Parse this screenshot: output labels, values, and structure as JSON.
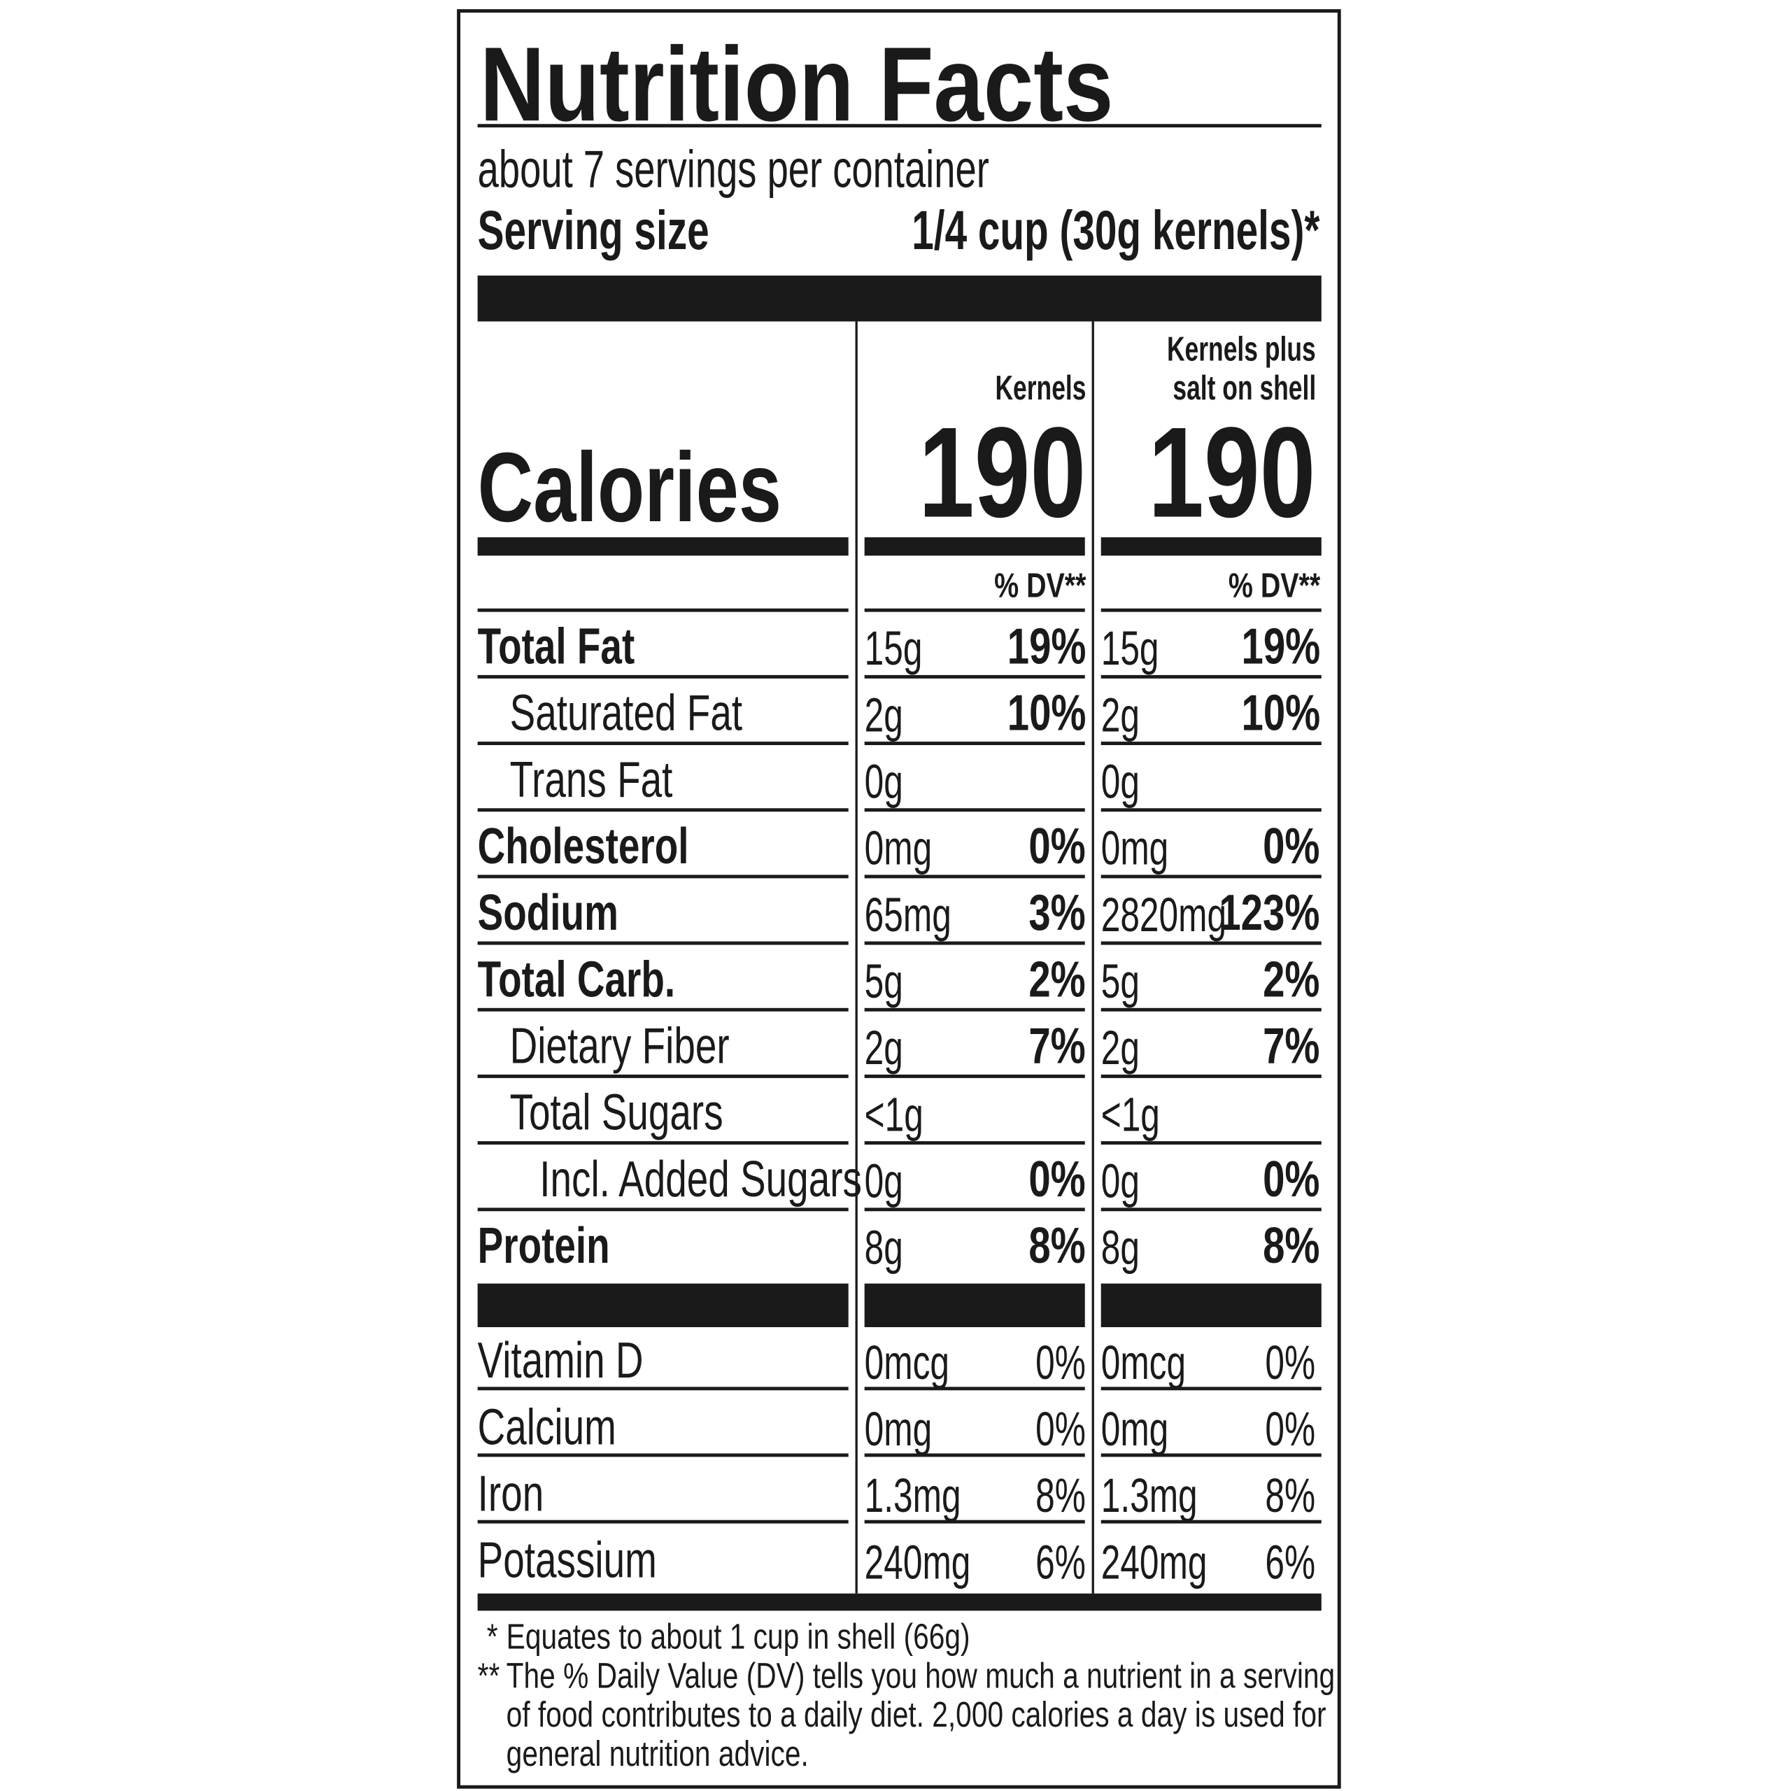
{
  "title": "Nutrition Facts",
  "servings_per_container": "about 7 servings per container",
  "serving_size_label": "Serving size",
  "serving_size_value": "1/4 cup (30g kernels)*",
  "calories_label": "Calories",
  "columns": [
    {
      "header_line1": "",
      "header_line2": "Kernels",
      "calories": "190",
      "dv_header": "% DV**"
    },
    {
      "header_line1": "Kernels plus",
      "header_line2": "salt on shell",
      "calories": "190",
      "dv_header": "% DV**"
    }
  ],
  "nutrients": [
    {
      "label": "Total Fat",
      "bold": true,
      "indent": 0,
      "values": [
        [
          "15g",
          "19%"
        ],
        [
          "15g",
          "19%"
        ]
      ]
    },
    {
      "label": "Saturated Fat",
      "bold": false,
      "indent": 1,
      "values": [
        [
          "2g",
          "10%"
        ],
        [
          "2g",
          "10%"
        ]
      ]
    },
    {
      "label": "Trans Fat",
      "bold": false,
      "indent": 1,
      "values": [
        [
          "0g",
          ""
        ],
        [
          "0g",
          ""
        ]
      ]
    },
    {
      "label": "Cholesterol",
      "bold": true,
      "indent": 0,
      "values": [
        [
          "0mg",
          "0%"
        ],
        [
          "0mg",
          "0%"
        ]
      ]
    },
    {
      "label": "Sodium",
      "bold": true,
      "indent": 0,
      "values": [
        [
          "65mg",
          "3%"
        ],
        [
          "2820mg",
          "123%"
        ]
      ]
    },
    {
      "label": "Total Carb.",
      "bold": true,
      "indent": 0,
      "values": [
        [
          "5g",
          "2%"
        ],
        [
          "5g",
          "2%"
        ]
      ]
    },
    {
      "label": "Dietary Fiber",
      "bold": false,
      "indent": 1,
      "values": [
        [
          "2g",
          "7%"
        ],
        [
          "2g",
          "7%"
        ]
      ]
    },
    {
      "label": "Total Sugars",
      "bold": false,
      "indent": 1,
      "values": [
        [
          "<1g",
          ""
        ],
        [
          "<1g",
          ""
        ]
      ]
    },
    {
      "label": "Incl. Added Sugars",
      "bold": false,
      "indent": 2,
      "values": [
        [
          "0g",
          "0%"
        ],
        [
          "0g",
          "0%"
        ]
      ]
    },
    {
      "label": "Protein",
      "bold": true,
      "indent": 0,
      "values": [
        [
          "8g",
          "8%"
        ],
        [
          "8g",
          "8%"
        ]
      ]
    }
  ],
  "vitamins": [
    {
      "label": "Vitamin D",
      "values": [
        [
          "0mcg",
          "0%"
        ],
        [
          "0mcg",
          "0%"
        ]
      ]
    },
    {
      "label": "Calcium",
      "values": [
        [
          "0mg",
          "0%"
        ],
        [
          "0mg",
          "0%"
        ]
      ]
    },
    {
      "label": "Iron",
      "values": [
        [
          "1.3mg",
          "8%"
        ],
        [
          "1.3mg",
          "8%"
        ]
      ]
    },
    {
      "label": "Potassium",
      "values": [
        [
          "240mg",
          "6%"
        ],
        [
          "240mg",
          "6%"
        ]
      ]
    }
  ],
  "footnotes": {
    "f1_mark": "*",
    "f1_text": "Equates to about 1 cup in shell (66g)",
    "f2_mark": "**",
    "f2_line1": "The % Daily Value (DV) tells you how much a nutrient in a serving",
    "f2_line2": "of food contributes to a daily diet. 2,000 calories a day is used for",
    "f2_line3": "general nutrition advice."
  },
  "colors": {
    "ink": "#1a1a1a",
    "background": "#ffffff"
  }
}
